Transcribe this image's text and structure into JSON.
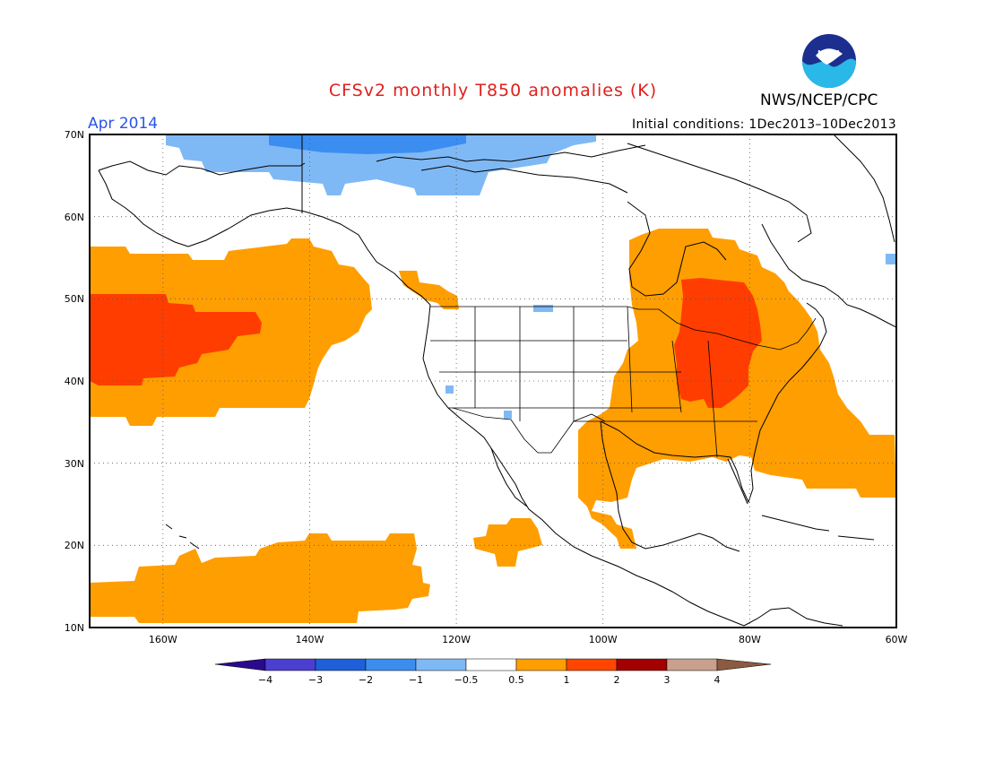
{
  "header": {
    "title": "CFSv2 monthly T850 anomalies (K)",
    "period": "Apr 2014",
    "organization": "NWS/NCEP/CPC",
    "initial_conditions": "Initial conditions: 1Dec2013–10Dec2013",
    "logo_text": "NOAA"
  },
  "map": {
    "lon_range": [
      -170,
      -60
    ],
    "lat_range": [
      10,
      70
    ],
    "lon_ticks": [
      "160W",
      "140W",
      "120W",
      "100W",
      "80W",
      "60W"
    ],
    "lat_ticks": [
      "70N",
      "60N",
      "50N",
      "40N",
      "30N",
      "20N",
      "10N"
    ],
    "grid": "dotted"
  },
  "legend": {
    "labels": [
      "−4",
      "−3",
      "−2",
      "−1",
      "−0.5",
      "0.5",
      "1",
      "2",
      "3",
      "4"
    ],
    "colors": [
      "#2a0a8c",
      "#4a3fd0",
      "#1f5fd8",
      "#3b8ef0",
      "#7fb9f5",
      "#ffffff",
      "#ff9e00",
      "#ff4500",
      "#a30000",
      "#c8a08c",
      "#8c5a40"
    ]
  }
}
